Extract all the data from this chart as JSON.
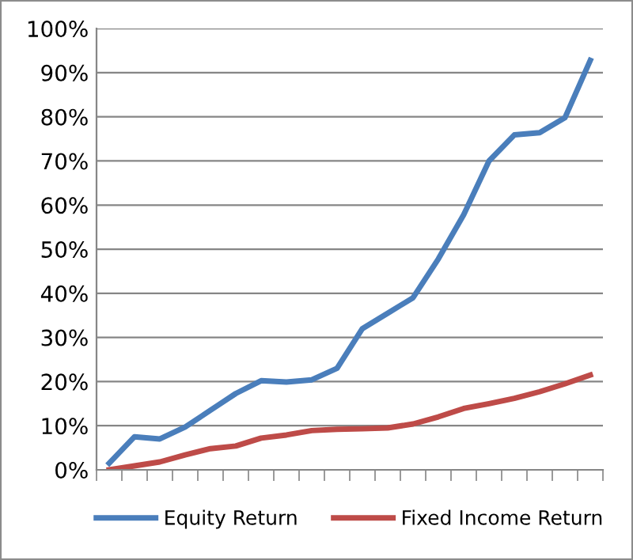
{
  "chart_data": {
    "type": "line",
    "categories": [
      null,
      null,
      null,
      null,
      null,
      null,
      null,
      null,
      null,
      null,
      null,
      null,
      null,
      null,
      null,
      null,
      null,
      null,
      null,
      null
    ],
    "series": [
      {
        "name": "Equity Return",
        "color": "#4a7ebb",
        "values": [
          1.5,
          7.5,
          7,
          9.7,
          13.5,
          17.3,
          20.2,
          19.9,
          20.4,
          23,
          32,
          35.5,
          39,
          47.8,
          57.8,
          70,
          75.9,
          76.4,
          79.8,
          92.8
        ]
      },
      {
        "name": "Fixed Income Return",
        "color": "#be4b48",
        "values": [
          0,
          0.9,
          1.8,
          3.4,
          4.8,
          5.4,
          7.2,
          7.9,
          8.9,
          9.2,
          9.3,
          9.5,
          10.4,
          12,
          13.9,
          15,
          16.2,
          17.7,
          19.5,
          21.5
        ]
      }
    ],
    "ylim": [
      0,
      100
    ],
    "yticks": [
      {
        "value": 0,
        "label": "0%"
      },
      {
        "value": 10,
        "label": "10%"
      },
      {
        "value": 20,
        "label": "20%"
      },
      {
        "value": 30,
        "label": "30%"
      },
      {
        "value": 40,
        "label": "40%"
      },
      {
        "value": 50,
        "label": "50%"
      },
      {
        "value": 60,
        "label": "60%"
      },
      {
        "value": 70,
        "label": "70%"
      },
      {
        "value": 80,
        "label": "80%"
      },
      {
        "value": 90,
        "label": "90%"
      },
      {
        "value": 100,
        "label": "100%"
      }
    ],
    "grid": "y",
    "legend": "bottom",
    "marker": "none",
    "line_style": "solid"
  }
}
